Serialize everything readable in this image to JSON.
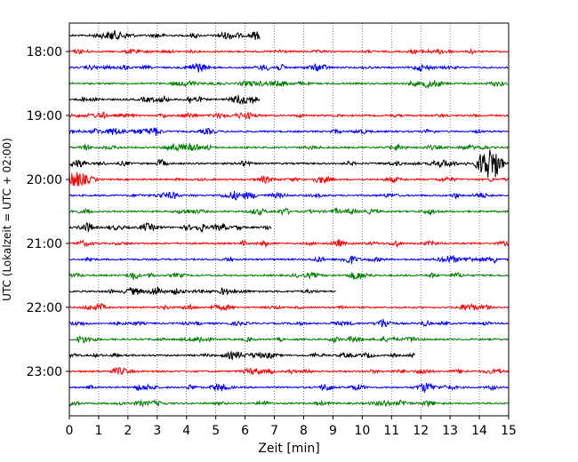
{
  "chart_data": {
    "type": "line",
    "title": "",
    "xlabel": "Zeit  [min]",
    "ylabel": "UTC (Lokalzeit = UTC + 02:00)",
    "xlim": [
      0,
      15
    ],
    "x_ticks": [
      "0",
      "1",
      "2",
      "3",
      "4",
      "5",
      "6",
      "7",
      "8",
      "9",
      "10",
      "11",
      "12",
      "13",
      "14",
      "15"
    ],
    "y_ticks": [
      "18:00",
      "19:00",
      "20:00",
      "21:00",
      "22:00",
      "23:00"
    ],
    "grid": "vertical dotted",
    "trace_interval_min": 15,
    "colors": [
      "#000000",
      "#ff0000",
      "#0000ff",
      "#008000"
    ],
    "rows": [
      {
        "start": "17:45",
        "color": "#000000",
        "end_min": 6.5
      },
      {
        "start": "18:00",
        "color": "#ff0000"
      },
      {
        "start": "18:15",
        "color": "#0000ff"
      },
      {
        "start": "18:30",
        "color": "#008000"
      },
      {
        "start": "18:45",
        "color": "#000000",
        "end_min": 6.5
      },
      {
        "start": "19:00",
        "color": "#ff0000"
      },
      {
        "start": "19:15",
        "color": "#0000ff"
      },
      {
        "start": "19:30",
        "color": "#008000"
      },
      {
        "start": "19:45",
        "color": "#000000",
        "event": {
          "t0": 13.8,
          "t1": 15.0,
          "amp": 1.0
        }
      },
      {
        "start": "20:00",
        "color": "#ff0000",
        "event": {
          "t0": 0.0,
          "t1": 1.0,
          "amp": 0.55
        }
      },
      {
        "start": "20:15",
        "color": "#0000ff"
      },
      {
        "start": "20:30",
        "color": "#008000"
      },
      {
        "start": "20:45",
        "color": "#000000",
        "end_min": 6.9
      },
      {
        "start": "21:00",
        "color": "#ff0000"
      },
      {
        "start": "21:15",
        "color": "#0000ff"
      },
      {
        "start": "21:30",
        "color": "#008000"
      },
      {
        "start": "21:45",
        "color": "#000000",
        "end_min": 9.1
      },
      {
        "start": "22:00",
        "color": "#ff0000"
      },
      {
        "start": "22:15",
        "color": "#0000ff"
      },
      {
        "start": "22:30",
        "color": "#008000"
      },
      {
        "start": "22:45",
        "color": "#000000",
        "end_min": 11.8
      },
      {
        "start": "23:00",
        "color": "#ff0000"
      },
      {
        "start": "23:15",
        "color": "#0000ff"
      },
      {
        "start": "23:30",
        "color": "#008000"
      }
    ]
  }
}
